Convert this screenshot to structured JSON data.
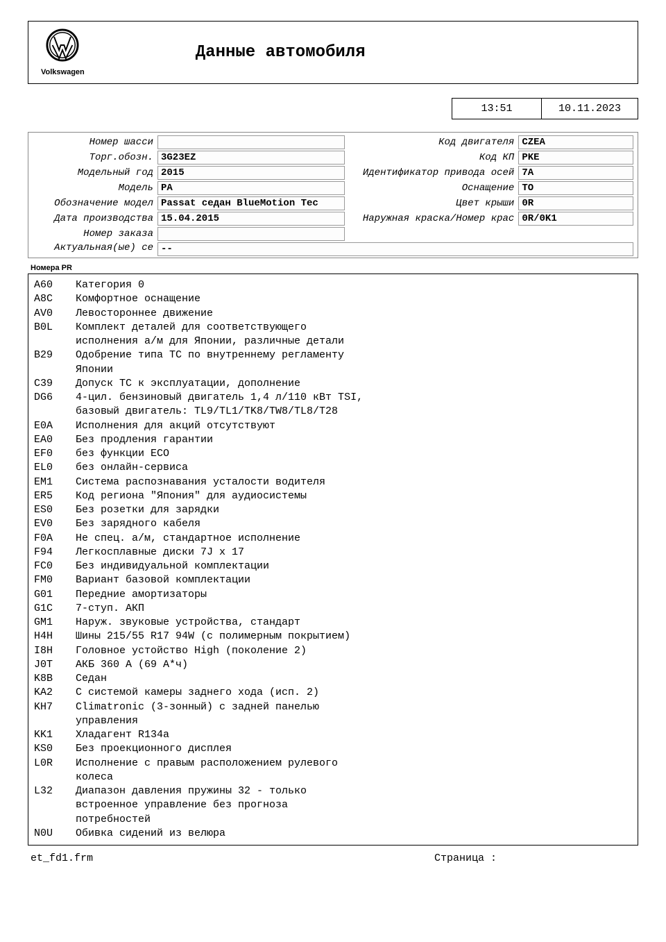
{
  "header": {
    "brand": "Volkswagen",
    "title": "Данные автомобиля"
  },
  "datetime": {
    "time": "13:51",
    "date": "10.11.2023"
  },
  "info": {
    "left": [
      {
        "label": "Номер шасси",
        "value": ""
      },
      {
        "label": "Торг.обозн.",
        "value": "3G23EZ"
      },
      {
        "label": "Модельный год",
        "value": "2015"
      },
      {
        "label": "Модель",
        "value": "PA"
      },
      {
        "label": "Обозначение модел",
        "value": "Passat седан BlueMotion Tec"
      },
      {
        "label": "Дата производства",
        "value": "15.04.2015"
      },
      {
        "label": "Номер заказа",
        "value": ""
      }
    ],
    "right": [
      {
        "label": "Код двигателя",
        "value": "CZEA"
      },
      {
        "label": "Код КП",
        "value": "PKE"
      },
      {
        "label": "Идентификатор привода осей",
        "value": "7A"
      },
      {
        "label": "Оснащение",
        "value": "TO"
      },
      {
        "label": "Цвет крыши",
        "value": "0R"
      },
      {
        "label": "Наружная краска/Номер крас",
        "value": "0R/0K1"
      }
    ],
    "full": {
      "label": "Актуальная(ые) се",
      "value": "--"
    }
  },
  "pr_section_label": "Номера PR",
  "pr": [
    {
      "code": "A60",
      "desc": "Категория 0"
    },
    {
      "code": "A8C",
      "desc": "Комфортное оснащение"
    },
    {
      "code": "AV0",
      "desc": "Левостороннее движение"
    },
    {
      "code": "B0L",
      "desc": "Комплект деталей для соответствующего исполнения а/м для Японии, различные детали"
    },
    {
      "code": "B29",
      "desc": "Одобрение типа ТС по внутреннему регламенту Японии"
    },
    {
      "code": "C39",
      "desc": "Допуск ТС к эксплуатации, дополнение"
    },
    {
      "code": "DG6",
      "desc": "4-цил. бензиновый двигатель 1,4 л/110 кВт TSI, базовый двигатель: TL9/TL1/TK8/TW8/TL8/T28"
    },
    {
      "code": "E0A",
      "desc": "Исполнения для акций отсутствуют"
    },
    {
      "code": "EA0",
      "desc": "Без продления гарантии"
    },
    {
      "code": "EF0",
      "desc": "без функции ECO"
    },
    {
      "code": "EL0",
      "desc": "без онлайн-сервиса"
    },
    {
      "code": "EM1",
      "desc": "Система распознавания усталости водителя"
    },
    {
      "code": "ER5",
      "desc": "Код региона \"Япония\" для аудиосистемы"
    },
    {
      "code": "ES0",
      "desc": "Без розетки для зарядки"
    },
    {
      "code": "EV0",
      "desc": "Без зарядного кабеля"
    },
    {
      "code": "F0A",
      "desc": "Не спец. а/м, стандартное исполнение"
    },
    {
      "code": "F94",
      "desc": "Легкосплавные диски 7J x 17"
    },
    {
      "code": "FC0",
      "desc": "Без индивидуальной комплектации"
    },
    {
      "code": "FM0",
      "desc": "Вариант базовой комплектации"
    },
    {
      "code": "G01",
      "desc": "Передние амортизаторы"
    },
    {
      "code": "G1C",
      "desc": "7-ступ. АКП"
    },
    {
      "code": "GM1",
      "desc": "Наруж. звуковые устройства, стандарт"
    },
    {
      "code": "H4H",
      "desc": "Шины 215/55 R17 94W (с полимерным покрытием)"
    },
    {
      "code": "I8H",
      "desc": "Головное устойство High (поколение 2)"
    },
    {
      "code": "J0T",
      "desc": "АКБ 360 А (69 А*ч)"
    },
    {
      "code": "K8B",
      "desc": "Седан"
    },
    {
      "code": "KA2",
      "desc": "С системой камеры заднего хода (исп. 2)"
    },
    {
      "code": "KH7",
      "desc": "Climatronic (3-зонный) с задней панелью управления"
    },
    {
      "code": "KK1",
      "desc": "Хладагент R134a"
    },
    {
      "code": "KS0",
      "desc": "Без проекционного дисплея"
    },
    {
      "code": "L0R",
      "desc": "Исполнение с правым расположением рулевого колеса"
    },
    {
      "code": "L32",
      "desc": "Диапазон давления пружины 32 - только встроенное управление без прогноза потребностей"
    },
    {
      "code": "N0U",
      "desc": "Обивка сидений из велюра"
    }
  ],
  "footer": {
    "form": "et_fd1.frm",
    "page_label": "Страница  :"
  },
  "pr_desc_max_width": 420
}
